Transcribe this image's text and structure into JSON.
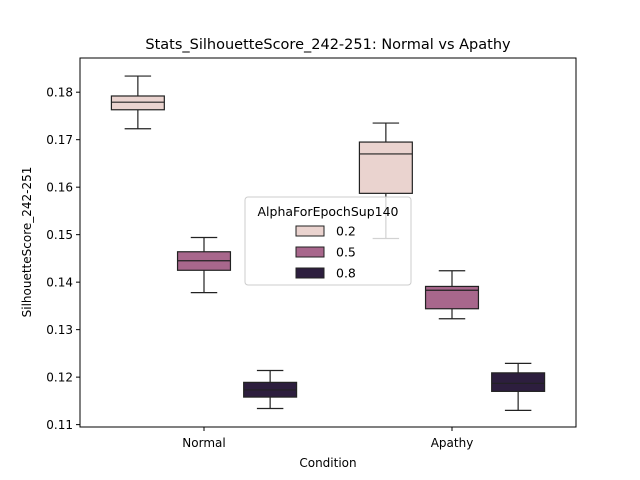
{
  "chart_data": {
    "type": "box",
    "title": "Stats_SilhouetteScore_242-251: Normal vs Apathy",
    "xlabel": "Condition",
    "ylabel": "SilhouetteScore_242-251",
    "categories": [
      "Normal",
      "Apathy"
    ],
    "ylim": [
      0.1095,
      0.1872
    ],
    "yticks": [
      {
        "value": 0.11,
        "label": "0.11"
      },
      {
        "value": 0.12,
        "label": "0.12"
      },
      {
        "value": 0.13,
        "label": "0.13"
      },
      {
        "value": 0.14,
        "label": "0.14"
      },
      {
        "value": 0.15,
        "label": "0.15"
      },
      {
        "value": 0.16,
        "label": "0.16"
      },
      {
        "value": 0.17,
        "label": "0.17"
      },
      {
        "value": 0.18,
        "label": "0.18"
      }
    ],
    "grid": false,
    "legend": {
      "title": "AlphaForEpochSup140",
      "placement": "center"
    },
    "series": [
      {
        "name": "0.2",
        "color": "#ead3cf",
        "boxes": [
          {
            "category": "Normal",
            "whisker_low": 0.1723,
            "q1": 0.1763,
            "median": 0.1779,
            "q3": 0.1792,
            "whisker_high": 0.1834
          },
          {
            "category": "Apathy",
            "whisker_low": 0.1492,
            "q1": 0.1587,
            "median": 0.167,
            "q3": 0.1695,
            "whisker_high": 0.1735
          }
        ]
      },
      {
        "name": "0.5",
        "color": "#a8678c",
        "boxes": [
          {
            "category": "Normal",
            "whisker_low": 0.1378,
            "q1": 0.1425,
            "median": 0.1445,
            "q3": 0.1464,
            "whisker_high": 0.1494
          },
          {
            "category": "Apathy",
            "whisker_low": 0.1323,
            "q1": 0.1344,
            "median": 0.1383,
            "q3": 0.1391,
            "whisker_high": 0.1424
          }
        ]
      },
      {
        "name": "0.8",
        "color": "#2d1e3e",
        "boxes": [
          {
            "category": "Normal",
            "whisker_low": 0.1134,
            "q1": 0.1158,
            "median": 0.1173,
            "q3": 0.1189,
            "whisker_high": 0.1214
          },
          {
            "category": "Apathy",
            "whisker_low": 0.113,
            "q1": 0.117,
            "median": 0.1187,
            "q3": 0.1209,
            "whisker_high": 0.1229
          }
        ]
      }
    ]
  }
}
